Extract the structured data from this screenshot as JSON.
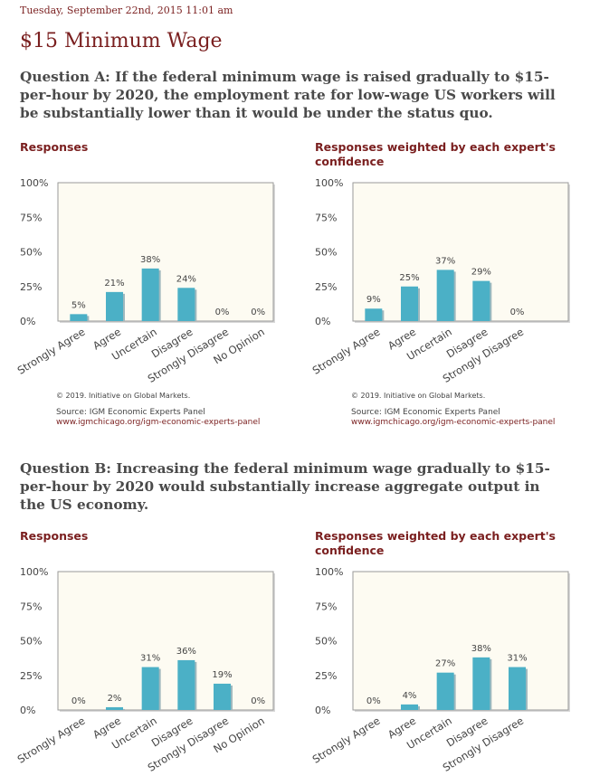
{
  "date": "Tuesday, September 22nd, 2015 11:01 am",
  "title": "$15 Minimum Wage",
  "colors": {
    "bar": "#4bb0c6",
    "plot_bg": "#fdfbf2",
    "accent": "#7a1f1f"
  },
  "footer": {
    "copyright": "© 2019. Initiative on Global Markets.",
    "source": "Source: IGM Economic Experts Panel",
    "url": "www.igmchicago.org/igm-economic-experts-panel"
  },
  "questions": [
    {
      "text": "Question A: If the federal minimum wage is raised gradually to $15-per-hour by 2020, the employment rate for low-wage US workers will be substantially lower than it would be under the status quo.",
      "charts": [
        {
          "title": "Responses"
        },
        {
          "title": "Responses weighted by each expert's confidence"
        }
      ]
    },
    {
      "text": "Question B: Increasing the federal minimum wage gradually to $15-per-hour by 2020 would substantially increase aggregate output in the US economy.",
      "charts": [
        {
          "title": "Responses"
        },
        {
          "title": "Responses weighted by each expert's confidence"
        }
      ]
    }
  ],
  "chart_data": [
    {
      "type": "bar",
      "title": "Responses",
      "categories": [
        "Strongly Agree",
        "Agree",
        "Uncertain",
        "Disagree",
        "Strongly Disagree",
        "No Opinion"
      ],
      "values": [
        5,
        21,
        38,
        24,
        0,
        0
      ],
      "value_labels": [
        "5%",
        "21%",
        "38%",
        "24%",
        "0%",
        "0%"
      ],
      "yticks": [
        "0%",
        "25%",
        "50%",
        "75%",
        "100%"
      ],
      "ylim": [
        0,
        100
      ]
    },
    {
      "type": "bar",
      "title": "Responses weighted by each expert's confidence",
      "categories": [
        "Strongly Agree",
        "Agree",
        "Uncertain",
        "Disagree",
        "Strongly Disagree"
      ],
      "values": [
        9,
        25,
        37,
        29,
        0
      ],
      "value_labels": [
        "9%",
        "25%",
        "37%",
        "29%",
        "0%"
      ],
      "yticks": [
        "0%",
        "25%",
        "50%",
        "75%",
        "100%"
      ],
      "ylim": [
        0,
        100
      ]
    },
    {
      "type": "bar",
      "title": "Responses",
      "categories": [
        "Strongly Agree",
        "Agree",
        "Uncertain",
        "Disagree",
        "Strongly Disagree",
        "No Opinion"
      ],
      "values": [
        0,
        2,
        31,
        36,
        19,
        0
      ],
      "value_labels": [
        "0%",
        "2%",
        "31%",
        "36%",
        "19%",
        "0%"
      ],
      "yticks": [
        "0%",
        "25%",
        "50%",
        "75%",
        "100%"
      ],
      "ylim": [
        0,
        100
      ]
    },
    {
      "type": "bar",
      "title": "Responses weighted by each expert's confidence",
      "categories": [
        "Strongly Agree",
        "Agree",
        "Uncertain",
        "Disagree",
        "Strongly Disagree"
      ],
      "values": [
        0,
        4,
        27,
        38,
        31
      ],
      "value_labels": [
        "0%",
        "4%",
        "27%",
        "38%",
        "31%"
      ],
      "yticks": [
        "0%",
        "25%",
        "50%",
        "75%",
        "100%"
      ],
      "ylim": [
        0,
        100
      ]
    }
  ]
}
